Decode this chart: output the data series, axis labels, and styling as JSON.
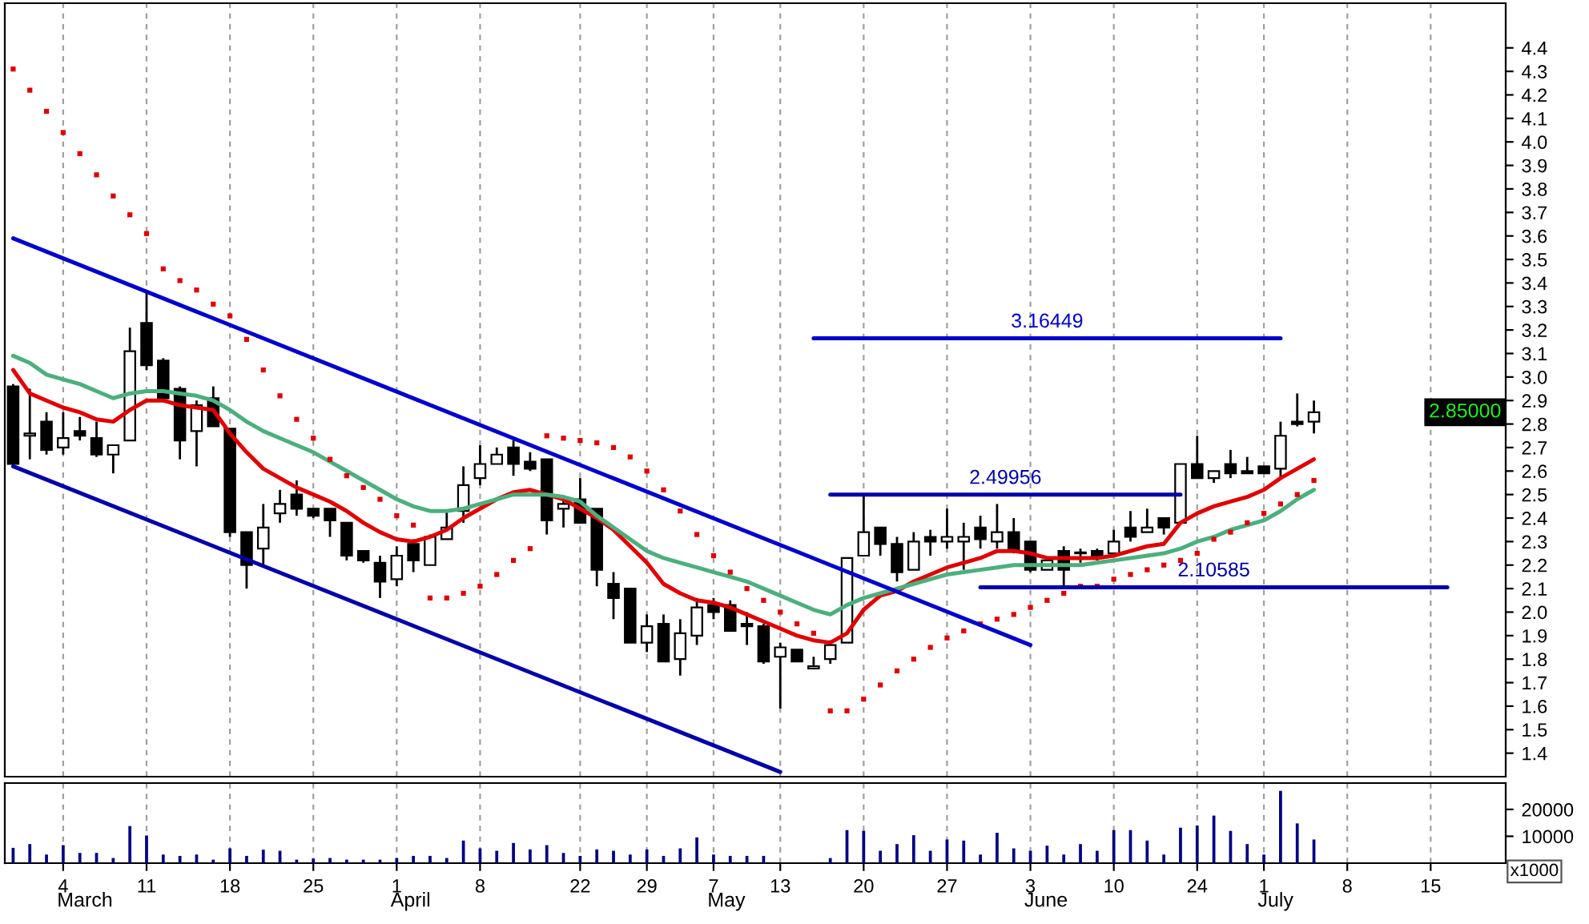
{
  "chart_data": [
    {
      "type": "candlestick",
      "color": "#000000",
      "categories": [
        null,
        null,
        null,
        "4",
        null,
        null,
        null,
        null,
        "11",
        null,
        null,
        null,
        null,
        "18",
        null,
        null,
        null,
        null,
        "25",
        null,
        null,
        null,
        null,
        "1",
        null,
        null,
        null,
        null,
        "8",
        null,
        null,
        null,
        null,
        null,
        "22",
        null,
        null,
        null,
        "29",
        null,
        null,
        null,
        "7",
        null,
        null,
        null,
        "13",
        null,
        null,
        null,
        null,
        "20",
        null,
        null,
        null,
        null,
        "27",
        null,
        null,
        null,
        null,
        "3",
        null,
        null,
        null,
        null,
        "10",
        null,
        null,
        null,
        null,
        "24",
        null,
        null,
        null,
        "1",
        null,
        null,
        null,
        null,
        "8",
        null,
        null,
        null,
        null,
        "15",
        null,
        null,
        null,
        null
      ],
      "ohlc": [
        [
          2.96,
          2.97,
          2.62,
          2.63
        ],
        [
          2.75,
          2.95,
          2.65,
          2.76
        ],
        [
          2.81,
          2.85,
          2.67,
          2.69
        ],
        [
          2.7,
          2.85,
          2.67,
          2.74
        ],
        [
          2.77,
          2.83,
          2.73,
          2.75
        ],
        [
          2.74,
          2.81,
          2.66,
          2.67
        ],
        [
          2.67,
          2.71,
          2.59,
          2.71
        ],
        [
          2.73,
          3.21,
          2.73,
          3.11
        ],
        [
          3.23,
          3.37,
          3.03,
          3.05
        ],
        [
          3.07,
          3.08,
          2.91,
          2.91
        ],
        [
          2.95,
          2.96,
          2.65,
          2.73
        ],
        [
          2.77,
          2.9,
          2.62,
          2.88
        ],
        [
          2.91,
          2.96,
          2.79,
          2.79
        ],
        [
          2.78,
          2.78,
          2.32,
          2.34
        ],
        [
          2.34,
          2.34,
          2.1,
          2.2
        ],
        [
          2.27,
          2.46,
          2.2,
          2.36
        ],
        [
          2.42,
          2.52,
          2.38,
          2.46
        ],
        [
          2.5,
          2.56,
          2.41,
          2.44
        ],
        [
          2.44,
          2.44,
          2.4,
          2.41
        ],
        [
          2.44,
          2.44,
          2.32,
          2.39
        ],
        [
          2.38,
          2.38,
          2.22,
          2.24
        ],
        [
          2.26,
          2.26,
          2.21,
          2.22
        ],
        [
          2.21,
          2.24,
          2.06,
          2.13
        ],
        [
          2.14,
          2.28,
          2.11,
          2.24
        ],
        [
          2.29,
          2.31,
          2.17,
          2.22
        ],
        [
          2.2,
          2.33,
          2.2,
          2.32
        ],
        [
          2.31,
          2.43,
          2.31,
          2.36
        ],
        [
          2.43,
          2.62,
          2.38,
          2.54
        ],
        [
          2.57,
          2.71,
          2.54,
          2.63
        ],
        [
          2.63,
          2.7,
          2.63,
          2.67
        ],
        [
          2.7,
          2.73,
          2.58,
          2.63
        ],
        [
          2.64,
          2.68,
          2.6,
          2.61
        ],
        [
          2.65,
          2.65,
          2.33,
          2.39
        ],
        [
          2.44,
          2.48,
          2.36,
          2.46
        ],
        [
          2.48,
          2.57,
          2.38,
          2.38
        ],
        [
          2.44,
          2.44,
          2.11,
          2.18
        ],
        [
          2.12,
          2.17,
          1.97,
          2.06
        ],
        [
          2.1,
          2.1,
          1.87,
          1.87
        ],
        [
          1.87,
          1.99,
          1.83,
          1.94
        ],
        [
          1.95,
          1.99,
          1.79,
          1.79
        ],
        [
          1.8,
          1.97,
          1.73,
          1.91
        ],
        [
          1.9,
          2.06,
          1.86,
          2.02
        ],
        [
          2.03,
          2.06,
          1.97,
          2.0
        ],
        [
          2.03,
          2.05,
          1.92,
          1.92
        ],
        [
          1.95,
          2.0,
          1.86,
          1.94
        ],
        [
          1.94,
          1.95,
          1.78,
          1.79
        ],
        [
          1.81,
          1.87,
          1.59,
          1.85
        ],
        [
          1.84,
          1.84,
          1.79,
          1.79
        ],
        [
          1.76,
          1.81,
          1.76,
          1.77
        ],
        [
          1.8,
          1.88,
          1.78,
          1.86
        ],
        [
          1.87,
          2.23,
          1.87,
          2.23
        ],
        [
          2.24,
          2.5,
          2.24,
          2.34
        ],
        [
          2.36,
          2.36,
          2.24,
          2.29
        ],
        [
          2.29,
          2.32,
          2.13,
          2.17
        ],
        [
          2.18,
          2.34,
          2.18,
          2.3
        ],
        [
          2.32,
          2.35,
          2.24,
          2.3
        ],
        [
          2.3,
          2.44,
          2.27,
          2.32
        ],
        [
          2.3,
          2.38,
          2.18,
          2.32
        ],
        [
          2.36,
          2.41,
          2.27,
          2.31
        ],
        [
          2.3,
          2.46,
          2.27,
          2.34
        ],
        [
          2.34,
          2.4,
          2.25,
          2.26
        ],
        [
          2.3,
          2.3,
          2.17,
          2.18
        ],
        [
          2.18,
          2.22,
          2.18,
          2.22
        ],
        [
          2.26,
          2.28,
          2.11,
          2.18
        ],
        [
          2.25,
          2.27,
          2.21,
          2.25
        ],
        [
          2.26,
          2.27,
          2.22,
          2.23
        ],
        [
          2.25,
          2.35,
          2.24,
          2.3
        ],
        [
          2.36,
          2.43,
          2.3,
          2.32
        ],
        [
          2.34,
          2.44,
          2.34,
          2.36
        ],
        [
          2.4,
          2.4,
          2.33,
          2.36
        ],
        [
          2.38,
          2.63,
          2.38,
          2.63
        ],
        [
          2.63,
          2.75,
          2.57,
          2.57
        ],
        [
          2.57,
          2.6,
          2.55,
          2.6
        ],
        [
          2.63,
          2.69,
          2.57,
          2.59
        ],
        [
          2.6,
          2.66,
          2.59,
          2.59
        ],
        [
          2.62,
          2.62,
          2.59,
          2.59
        ],
        [
          2.61,
          2.81,
          2.57,
          2.75
        ],
        [
          2.81,
          2.93,
          2.79,
          2.8
        ],
        [
          2.81,
          2.9,
          2.76,
          2.85
        ],
        null,
        null,
        null,
        null,
        null,
        null,
        null,
        null,
        null,
        null,
        null
      ],
      "series": [
        {
          "type": "line",
          "color": "#e00000",
          "values": [
            3.03,
            2.93,
            2.9,
            2.87,
            2.85,
            2.82,
            2.81,
            2.86,
            2.9,
            2.9,
            2.88,
            2.87,
            2.86,
            2.76,
            2.68,
            2.61,
            2.57,
            2.53,
            2.5,
            2.47,
            2.43,
            2.38,
            2.34,
            2.31,
            2.3,
            2.32,
            2.35,
            2.4,
            2.44,
            2.48,
            2.51,
            2.52,
            2.5,
            2.48,
            2.44,
            2.4,
            2.35,
            2.28,
            2.21,
            2.12,
            2.08,
            2.05,
            2.04,
            2.02,
            1.99,
            1.96,
            1.93,
            1.9,
            1.88,
            1.87,
            1.91,
            2.01,
            2.07,
            2.09,
            2.13,
            2.16,
            2.19,
            2.21,
            2.23,
            2.26,
            2.26,
            2.25,
            2.23,
            2.23,
            2.23,
            2.23,
            2.24,
            2.26,
            2.28,
            2.29,
            2.38,
            2.42,
            2.45,
            2.47,
            2.49,
            2.52,
            2.57,
            2.61,
            2.65,
            null,
            null,
            null,
            null,
            null,
            null,
            null,
            null,
            null,
            null,
            null
          ]
        },
        {
          "type": "line",
          "color": "#4caf7d",
          "values": [
            3.09,
            3.06,
            3.01,
            2.99,
            2.97,
            2.94,
            2.91,
            2.93,
            2.94,
            2.94,
            2.93,
            2.92,
            2.9,
            2.86,
            2.81,
            2.77,
            2.74,
            2.71,
            2.68,
            2.64,
            2.6,
            2.56,
            2.52,
            2.48,
            2.45,
            2.43,
            2.43,
            2.44,
            2.46,
            2.48,
            2.5,
            2.5,
            2.5,
            2.49,
            2.47,
            2.41,
            2.36,
            2.31,
            2.26,
            2.23,
            2.21,
            2.19,
            2.17,
            2.15,
            2.13,
            2.1,
            2.07,
            2.04,
            2.01,
            1.99,
            2.03,
            2.06,
            2.08,
            2.1,
            2.12,
            2.14,
            2.16,
            2.17,
            2.18,
            2.19,
            2.2,
            2.2,
            2.2,
            2.2,
            2.2,
            2.21,
            2.22,
            2.23,
            2.24,
            2.25,
            2.27,
            2.3,
            2.32,
            2.35,
            2.37,
            2.39,
            2.43,
            2.48,
            2.52,
            null,
            null,
            null,
            null,
            null,
            null,
            null,
            null,
            null,
            null,
            null
          ]
        },
        {
          "type": "scatter",
          "color": "#dd0000",
          "values": [
            4.31,
            4.22,
            4.13,
            4.04,
            3.95,
            3.86,
            3.77,
            3.69,
            3.61,
            3.46,
            3.41,
            3.37,
            3.31,
            3.26,
            3.16,
            3.03,
            2.92,
            2.82,
            2.74,
            2.65,
            2.58,
            2.53,
            2.48,
            2.41,
            2.37,
            2.06,
            2.06,
            2.08,
            2.11,
            2.16,
            2.22,
            2.27,
            2.75,
            2.74,
            2.73,
            2.72,
            2.7,
            2.66,
            2.6,
            2.52,
            2.43,
            2.33,
            2.24,
            2.17,
            2.1,
            2.05,
            2.0,
            1.95,
            1.91,
            1.58,
            1.58,
            1.63,
            1.69,
            1.75,
            1.8,
            1.85,
            1.89,
            1.92,
            1.95,
            1.97,
            1.99,
            2.02,
            2.05,
            2.08,
            2.11,
            2.11,
            2.14,
            2.16,
            2.18,
            2.2,
            2.22,
            2.25,
            2.31,
            2.34,
            2.38,
            2.42,
            2.46,
            2.5,
            2.56,
            null,
            null,
            null,
            null,
            null,
            null,
            null,
            null,
            null,
            null,
            null
          ]
        },
        {
          "type": "line",
          "color": "#0000cc",
          "values": [
            3.59,
            null,
            null,
            null,
            null,
            null,
            null,
            null,
            null,
            null,
            null,
            null,
            null,
            null,
            null,
            null,
            null,
            null,
            null,
            null,
            null,
            null,
            null,
            null,
            null,
            null,
            null,
            null,
            null,
            null,
            null,
            null,
            null,
            null,
            null,
            null,
            null,
            null,
            null,
            null,
            null,
            null,
            null,
            null,
            null,
            null,
            null,
            null,
            null,
            null,
            null,
            null,
            null,
            null,
            null,
            null,
            null,
            null,
            null,
            null,
            null,
            1.86,
            null,
            null,
            null,
            null,
            null,
            null,
            null,
            null,
            null,
            null,
            null,
            null,
            null,
            null,
            null,
            null,
            null,
            null,
            null,
            null,
            null,
            null,
            null,
            null,
            null,
            null,
            null,
            null
          ]
        },
        {
          "type": "line",
          "color": "#0000aa",
          "values": [
            2.62,
            null,
            null,
            null,
            null,
            null,
            null,
            null,
            null,
            null,
            null,
            null,
            null,
            null,
            null,
            null,
            null,
            null,
            null,
            null,
            null,
            null,
            null,
            null,
            null,
            null,
            null,
            null,
            null,
            null,
            null,
            null,
            null,
            null,
            null,
            null,
            null,
            null,
            null,
            null,
            null,
            null,
            null,
            null,
            null,
            null,
            1.32,
            null,
            null,
            null,
            null,
            null,
            null,
            null,
            null,
            null,
            null,
            null,
            null,
            null,
            null,
            null,
            null,
            null,
            null,
            null,
            null,
            null,
            null,
            null,
            null,
            null,
            null,
            null,
            null,
            null,
            null,
            null,
            null,
            null,
            null,
            null,
            null,
            null,
            null,
            null,
            null,
            null,
            null,
            null
          ]
        },
        {
          "type": "line",
          "name": "3.16449",
          "color": "#0000cc",
          "values": [
            null,
            null,
            null,
            null,
            null,
            null,
            null,
            null,
            null,
            null,
            null,
            null,
            null,
            null,
            null,
            null,
            null,
            null,
            null,
            null,
            null,
            null,
            null,
            null,
            null,
            null,
            null,
            null,
            null,
            null,
            null,
            null,
            null,
            null,
            null,
            null,
            null,
            null,
            null,
            null,
            null,
            null,
            null,
            null,
            null,
            null,
            null,
            null,
            3.16449,
            null,
            null,
            null,
            null,
            null,
            null,
            null,
            null,
            null,
            null,
            null,
            null,
            null,
            null,
            null,
            null,
            null,
            null,
            null,
            null,
            null,
            null,
            null,
            null,
            null,
            null,
            null,
            3.16449,
            null,
            null,
            null,
            null,
            null,
            null,
            null,
            null,
            null,
            null,
            null,
            null,
            null
          ]
        },
        {
          "type": "line",
          "name": "2.49956",
          "color": "#0000aa",
          "values": [
            null,
            null,
            null,
            null,
            null,
            null,
            null,
            null,
            null,
            null,
            null,
            null,
            null,
            null,
            null,
            null,
            null,
            null,
            null,
            null,
            null,
            null,
            null,
            null,
            null,
            null,
            null,
            null,
            null,
            null,
            null,
            null,
            null,
            null,
            null,
            null,
            null,
            null,
            null,
            null,
            null,
            null,
            null,
            null,
            null,
            null,
            null,
            null,
            null,
            2.49956,
            null,
            null,
            null,
            null,
            null,
            null,
            null,
            null,
            null,
            null,
            null,
            null,
            null,
            null,
            null,
            null,
            null,
            null,
            null,
            null,
            2.49956,
            null,
            null,
            null,
            null,
            null,
            null,
            null,
            null,
            null,
            null,
            null,
            null,
            null,
            null,
            null,
            null,
            null,
            null,
            null
          ]
        },
        {
          "type": "line",
          "name": "2.10585",
          "color": "#0000aa",
          "values": [
            null,
            null,
            null,
            null,
            null,
            null,
            null,
            null,
            null,
            null,
            null,
            null,
            null,
            null,
            null,
            null,
            null,
            null,
            null,
            null,
            null,
            null,
            null,
            null,
            null,
            null,
            null,
            null,
            null,
            null,
            null,
            null,
            null,
            null,
            null,
            null,
            null,
            null,
            null,
            null,
            null,
            null,
            null,
            null,
            null,
            null,
            null,
            null,
            null,
            null,
            null,
            null,
            null,
            null,
            null,
            null,
            null,
            null,
            2.10585,
            null,
            null,
            null,
            null,
            null,
            null,
            null,
            null,
            null,
            null,
            null,
            null,
            null,
            null,
            null,
            null,
            null,
            null,
            null,
            null,
            null,
            null,
            null,
            null,
            null,
            null,
            null,
            2.10585,
            null,
            null,
            null
          ]
        }
      ],
      "annotations": [
        "2.85000"
      ],
      "ylim": [
        1.3,
        4.59
      ],
      "yticks": [
        1.4,
        1.5,
        1.6,
        1.7,
        1.8,
        1.9,
        {
          "value": 2.0,
          "label": "2.0"
        },
        2.1,
        2.2,
        2.3,
        2.4,
        2.5,
        2.6,
        2.7,
        2.8,
        2.9,
        {
          "value": 3.0,
          "label": "3.0"
        },
        3.1,
        3.2,
        3.3,
        3.4,
        3.5,
        3.6,
        3.7,
        3.8,
        3.9,
        {
          "value": 4.0,
          "label": "4.0"
        },
        4.1,
        4.2,
        4.3,
        4.4
      ],
      "grid": "x",
      "tick_labels": "y"
    },
    {
      "type": "bar",
      "color": "#000080",
      "categories": [
        null,
        null,
        null,
        "4",
        null,
        null,
        null,
        null,
        "11",
        null,
        null,
        null,
        null,
        "18",
        null,
        null,
        null,
        null,
        "25",
        null,
        null,
        null,
        null,
        "1",
        null,
        null,
        null,
        null,
        "8",
        null,
        null,
        null,
        null,
        null,
        "22",
        null,
        null,
        null,
        "29",
        null,
        null,
        null,
        "7",
        null,
        null,
        null,
        "13",
        null,
        null,
        null,
        null,
        "20",
        null,
        null,
        null,
        null,
        "27",
        null,
        null,
        null,
        null,
        "3",
        null,
        null,
        null,
        null,
        "10",
        null,
        null,
        null,
        null,
        "24",
        null,
        null,
        null,
        "1",
        null,
        null,
        null,
        null,
        "8",
        null,
        null,
        null,
        null,
        "15",
        null,
        null,
        null,
        null
      ],
      "values": [
        5700,
        7100,
        3200,
        6700,
        3800,
        3800,
        1900,
        13800,
        10300,
        3200,
        2700,
        3200,
        1300,
        5500,
        2700,
        5000,
        4600,
        1300,
        1700,
        1900,
        1300,
        1300,
        1300,
        1900,
        2700,
        2700,
        1900,
        8400,
        5500,
        4600,
        7500,
        5100,
        6700,
        3800,
        2700,
        5100,
        4600,
        3200,
        5100,
        2700,
        5500,
        9600,
        3200,
        2700,
        2700,
        2700,
        null,
        null,
        null,
        1900,
        12300,
        12000,
        4600,
        7100,
        10400,
        4600,
        8800,
        8400,
        3200,
        11300,
        5500,
        4600,
        6500,
        3200,
        7100,
        4600,
        12300,
        12300,
        8400,
        3200,
        13200,
        14000,
        17700,
        12000,
        7100,
        3200,
        26900,
        14800,
        8800,
        null,
        null,
        null,
        null,
        null,
        null,
        null,
        null,
        null,
        null,
        null
      ],
      "ylabel": "x1000",
      "ylim": [
        0,
        29800
      ],
      "yticks": [
        10000,
        20000
      ],
      "annotations": [
        "March",
        "April",
        "May",
        "June",
        "July"
      ],
      "grid": "x"
    }
  ]
}
